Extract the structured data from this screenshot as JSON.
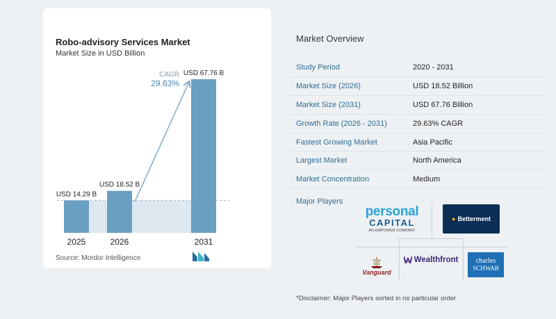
{
  "chart_data": {
    "type": "bar",
    "title": "Robo-advisory Services Market",
    "subtitle": "Market Size in USD Billion",
    "categories": [
      "2025",
      "2026",
      "2031"
    ],
    "values": [
      14.29,
      18.52,
      67.76
    ],
    "value_labels": [
      "USD 14.29 B",
      "USD 18.52 B",
      "USD 67.76 B"
    ],
    "ylim": [
      0,
      67.76
    ],
    "annotation": {
      "label": "CAGR",
      "value": "29.63%"
    },
    "grid": false,
    "bar_color": "#6b9fc2",
    "highlight_color": "#dde8f1"
  },
  "source": "Source:  Mordor Intelligence",
  "overview": {
    "title": "Market Overview",
    "rows": [
      {
        "key": "Study Period",
        "value": "2020 - 2031"
      },
      {
        "key": "Market Size (2026)",
        "value": "USD 18.52 Billion"
      },
      {
        "key": "Market Size (2031)",
        "value": "USD 67.76 Billion"
      },
      {
        "key": "Growth Rate (2026 - 2031)",
        "value": "29.63% CAGR"
      },
      {
        "key": "Fastest Growing Market",
        "value": "Asia Pacific"
      },
      {
        "key": "Largest Market",
        "value": "North America"
      },
      {
        "key": "Market Concentration",
        "value": "Medium"
      }
    ],
    "players_label": "Major Players"
  },
  "players": {
    "personal_capital": {
      "line1": "personal",
      "line2": "CAPITAL",
      "line3": "AN EMPOWER COMPANY"
    },
    "betterment": "Betterment",
    "vanguard": "Vanguard",
    "wealthfront": "Wealthfront",
    "schwab": {
      "line1": "charles",
      "line2": "SCHWAB"
    }
  },
  "disclaimer": "*Disclaimer: Major Players sorted in no particular order",
  "colors": {
    "accent": "#2e6c91",
    "bar": "#6b9fc2",
    "betterment_bg": "#0d2f56",
    "schwab_bg": "#1f6fb5",
    "personal_capital": "#2aa4d5"
  }
}
